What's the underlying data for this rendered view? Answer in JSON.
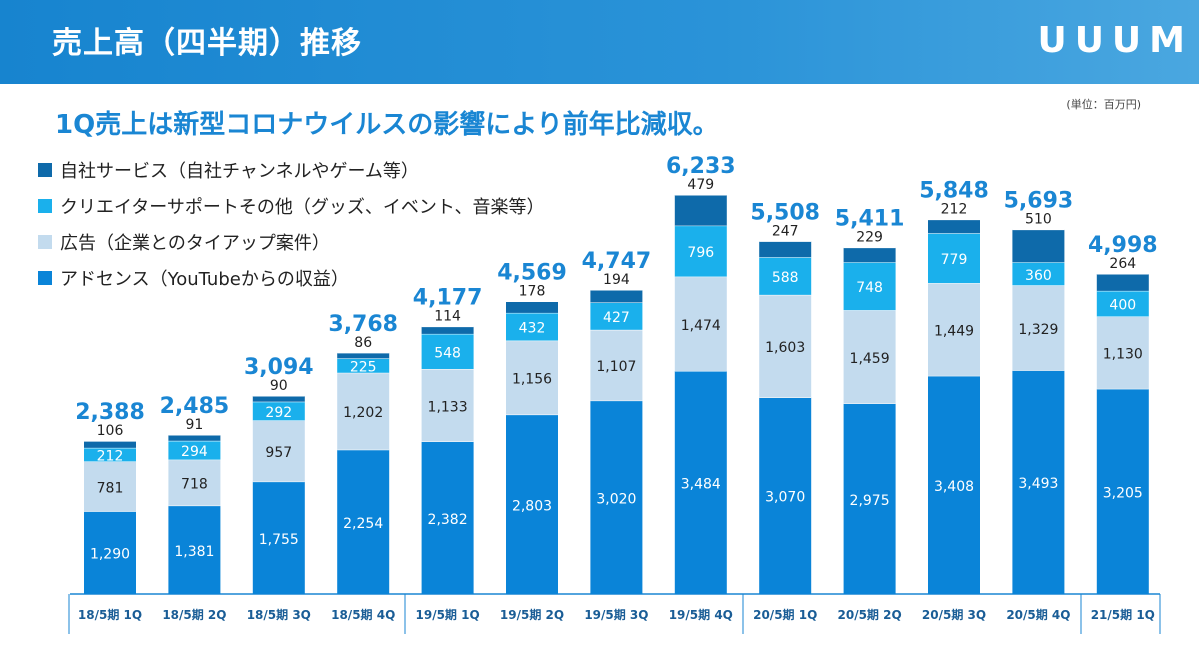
{
  "header": {
    "title": "売上高（四半期）推移",
    "logo": "UUUM"
  },
  "subtitle": "1Q売上は新型コロナウイルスの影響により前年比減収。",
  "unit": "(単位：百万円)",
  "colors": {
    "self_service": "#0e6aaa",
    "creator_support": "#1ab0ec",
    "ads": "#c3dbee",
    "adsense": "#0a84d8",
    "total": "#1a86d3",
    "header": "#1784cf"
  },
  "chart_data": {
    "type": "bar",
    "stacked": true,
    "categories": [
      "18/5期 1Q",
      "18/5期 2Q",
      "18/5期 3Q",
      "18/5期 4Q",
      "19/5期 1Q",
      "19/5期 2Q",
      "19/5期 3Q",
      "19/5期 4Q",
      "20/5期 1Q",
      "20/5期 2Q",
      "20/5期 3Q",
      "20/5期 4Q",
      "21/5期 1Q"
    ],
    "series": [
      {
        "name": "アドセンス（YouTubeからの収益）",
        "values": [
          1290,
          1381,
          1755,
          2254,
          2382,
          2803,
          3020,
          3484,
          3070,
          2975,
          3408,
          3493,
          3205
        ]
      },
      {
        "name": "広告（企業とのタイアップ案件）",
        "values": [
          781,
          718,
          957,
          1202,
          1133,
          1156,
          1107,
          1474,
          1603,
          1459,
          1449,
          1329,
          1130
        ]
      },
      {
        "name": "クリエイターサポートその他（グッズ、イベント、音楽等）",
        "values": [
          212,
          294,
          292,
          225,
          548,
          432,
          427,
          796,
          588,
          748,
          779,
          360,
          400
        ]
      },
      {
        "name": "自社サービス（自社チャンネルやゲーム等）",
        "values": [
          106,
          91,
          90,
          86,
          114,
          178,
          194,
          479,
          247,
          229,
          212,
          510,
          264
        ]
      }
    ],
    "totals": [
      2388,
      2485,
      3094,
      3768,
      4177,
      4569,
      4747,
      6233,
      5508,
      5411,
      5848,
      5693,
      4998
    ],
    "ylim": [
      0,
      6233
    ],
    "legend_position": "top-left"
  }
}
